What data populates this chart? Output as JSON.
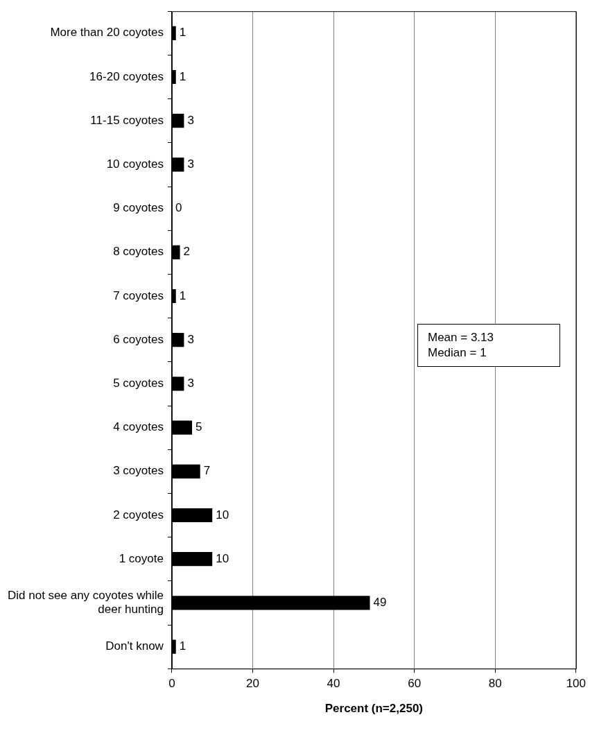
{
  "chart_data": {
    "type": "bar",
    "orientation": "horizontal",
    "categories": [
      "More than 20 coyotes",
      "16-20 coyotes",
      "11-15 coyotes",
      "10 coyotes",
      "9 coyotes",
      "8 coyotes",
      "7 coyotes",
      "6 coyotes",
      "5 coyotes",
      "4 coyotes",
      "3 coyotes",
      "2 coyotes",
      "1 coyote",
      "Did not see any coyotes while deer hunting",
      "Don't know"
    ],
    "values": [
      1,
      1,
      3,
      3,
      0,
      2,
      1,
      3,
      3,
      5,
      7,
      10,
      10,
      49,
      1
    ],
    "color": "#000000",
    "xlim": [
      0,
      100
    ],
    "xticks": [
      0,
      20,
      40,
      60,
      80,
      100
    ],
    "xlabel": "Percent (n=2,250)",
    "grid": "x",
    "legend": false,
    "data_labels": true,
    "annotations": [
      "Mean = 3.13",
      "Median = 1"
    ]
  }
}
